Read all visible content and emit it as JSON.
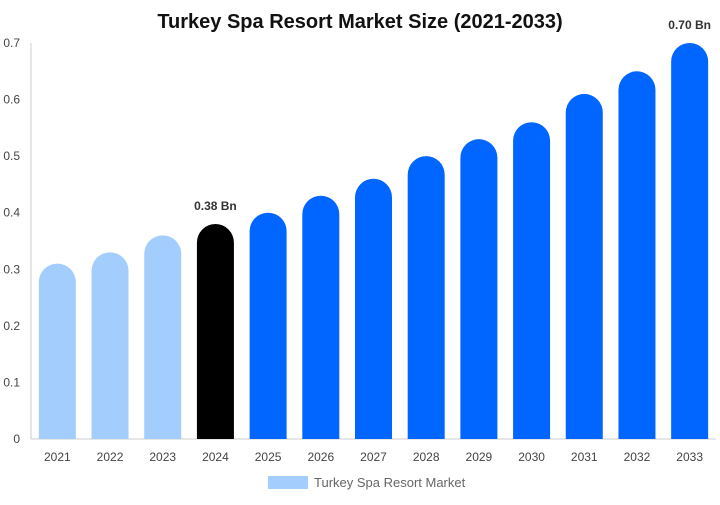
{
  "chart_data": {
    "type": "bar",
    "title": "Turkey Spa Resort Market Size (2021-2033)",
    "categories": [
      "2021",
      "2022",
      "2023",
      "2024",
      "2025",
      "2026",
      "2027",
      "2028",
      "2029",
      "2030",
      "2031",
      "2032",
      "2033"
    ],
    "series": [
      {
        "name": "Turkey Spa Resort Market",
        "values": [
          0.31,
          0.33,
          0.36,
          0.38,
          0.4,
          0.43,
          0.46,
          0.5,
          0.53,
          0.56,
          0.61,
          0.65,
          0.7
        ]
      }
    ],
    "bar_colors": [
      "#a3cdfc",
      "#a3cdfc",
      "#a3cdfc",
      "#000000",
      "#0066ff",
      "#0066ff",
      "#0066ff",
      "#0066ff",
      "#0066ff",
      "#0066ff",
      "#0066ff",
      "#0066ff",
      "#0066ff"
    ],
    "data_labels": [
      {
        "index": 3,
        "text": "0.38 Bn"
      },
      {
        "index": 12,
        "text": "0.70 Bn"
      }
    ],
    "ylim": [
      0,
      0.7
    ],
    "yticks": [
      "0",
      "0.1",
      "0.2",
      "0.3",
      "0.4",
      "0.5",
      "0.6",
      "0.7"
    ],
    "xlabel": "",
    "ylabel": "",
    "grid": false,
    "legend": {
      "placement": "bottom-center",
      "label": "Turkey Spa Resort Market",
      "color": "#a3cdfc"
    }
  }
}
